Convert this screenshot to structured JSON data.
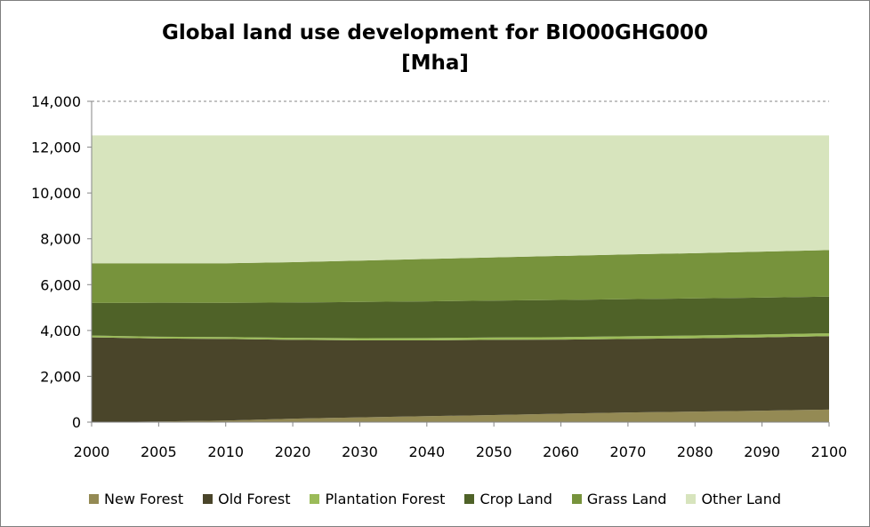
{
  "chart_data": {
    "type": "area",
    "stacked": true,
    "title": "Global land use development for BIO00GHG000",
    "subtitle": "[Mha]",
    "xlabel": "",
    "ylabel": "",
    "x": [
      2000,
      2005,
      2010,
      2020,
      2030,
      2040,
      2050,
      2060,
      2070,
      2080,
      2090,
      2100
    ],
    "ylim": [
      0,
      14000
    ],
    "yticks": [
      "0",
      "2,000",
      "4,000",
      "6,000",
      "8,000",
      "10,000",
      "12,000",
      "14,000"
    ],
    "ytick_values": [
      0,
      2000,
      4000,
      6000,
      8000,
      10000,
      12000,
      14000
    ],
    "grid": "horizontal dashed",
    "legend_position": "bottom",
    "series": [
      {
        "name": "New Forest",
        "color": "#948a54",
        "values": [
          0,
          30,
          70,
          150,
          210,
          260,
          310,
          370,
          420,
          460,
          500,
          550
        ]
      },
      {
        "name": "Old Forest",
        "color": "#4a452a",
        "values": [
          3700,
          3620,
          3560,
          3440,
          3360,
          3310,
          3280,
          3230,
          3210,
          3200,
          3200,
          3200
        ]
      },
      {
        "name": "Plantation Forest",
        "color": "#9bbb59",
        "values": [
          80,
          80,
          85,
          90,
          95,
          100,
          105,
          110,
          115,
          120,
          125,
          130
        ]
      },
      {
        "name": "Crop Land",
        "color": "#4f6228",
        "values": [
          1420,
          1480,
          1490,
          1540,
          1580,
          1600,
          1610,
          1620,
          1620,
          1620,
          1610,
          1600
        ]
      },
      {
        "name": "Grass Land",
        "color": "#77933c",
        "values": [
          1730,
          1720,
          1725,
          1760,
          1805,
          1850,
          1885,
          1925,
          1955,
          1975,
          2005,
          2030
        ]
      },
      {
        "name": "Other Land",
        "color": "#d7e4bd",
        "values": [
          5580,
          5580,
          5580,
          5530,
          5460,
          5390,
          5320,
          5255,
          5190,
          5135,
          5070,
          5000
        ]
      }
    ]
  }
}
